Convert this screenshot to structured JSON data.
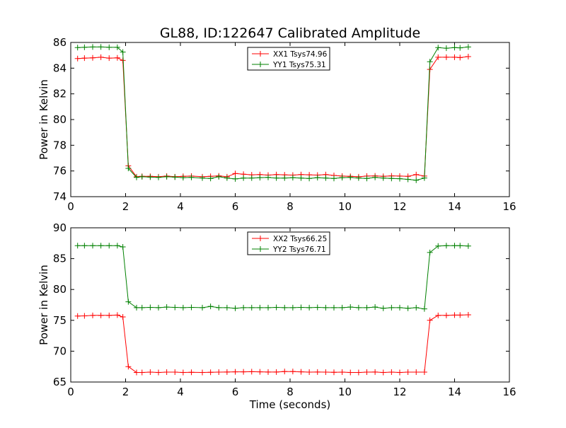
{
  "figure": {
    "title": "GL88, ID:122647 Calibrated Amplitude",
    "background": "#ffffff"
  },
  "chart_data": [
    {
      "type": "line",
      "title": "GL88, ID:122647 Calibrated Amplitude",
      "xlabel": "",
      "ylabel": "Power in Kelvin",
      "xlim": [
        0,
        16
      ],
      "ylim": [
        74,
        86
      ],
      "xticks": [
        0,
        2,
        4,
        6,
        8,
        10,
        12,
        14,
        16
      ],
      "yticks": [
        74,
        76,
        78,
        80,
        82,
        84,
        86
      ],
      "grid": false,
      "legend_position": "top-center",
      "marker": "+",
      "x": [
        0.25,
        0.5,
        0.8,
        1.1,
        1.4,
        1.7,
        1.9,
        2.1,
        2.4,
        2.6,
        2.9,
        3.2,
        3.5,
        3.8,
        4.1,
        4.4,
        4.8,
        5.1,
        5.4,
        5.7,
        6.0,
        6.3,
        6.6,
        6.9,
        7.2,
        7.5,
        7.8,
        8.1,
        8.4,
        8.7,
        9.0,
        9.3,
        9.6,
        9.9,
        10.2,
        10.5,
        10.8,
        11.1,
        11.4,
        11.7,
        12.0,
        12.3,
        12.6,
        12.9,
        13.1,
        13.4,
        13.7,
        14.0,
        14.2,
        14.5
      ],
      "series": [
        {
          "name": "XX1 Tsys74.96",
          "color": "#ff0000",
          "values": [
            84.75,
            84.78,
            84.8,
            84.85,
            84.78,
            84.8,
            84.6,
            76.4,
            75.55,
            75.58,
            75.58,
            75.55,
            75.6,
            75.55,
            75.58,
            75.6,
            75.55,
            75.58,
            75.62,
            75.55,
            75.8,
            75.75,
            75.7,
            75.72,
            75.68,
            75.72,
            75.7,
            75.68,
            75.72,
            75.7,
            75.68,
            75.72,
            75.65,
            75.6,
            75.58,
            75.55,
            75.6,
            75.62,
            75.58,
            75.62,
            75.6,
            75.58,
            75.72,
            75.6,
            83.9,
            84.85,
            84.85,
            84.85,
            84.82,
            84.9
          ]
        },
        {
          "name": "YY1 Tsys75.31",
          "color": "#008000",
          "values": [
            85.6,
            85.62,
            85.65,
            85.65,
            85.62,
            85.62,
            85.25,
            76.2,
            75.5,
            75.55,
            75.52,
            75.5,
            75.55,
            75.52,
            75.48,
            75.5,
            75.45,
            75.42,
            75.55,
            75.45,
            75.38,
            75.45,
            75.45,
            75.48,
            75.5,
            75.45,
            75.45,
            75.48,
            75.45,
            75.42,
            75.48,
            75.45,
            75.42,
            75.48,
            75.5,
            75.45,
            75.42,
            75.5,
            75.45,
            75.42,
            75.4,
            75.35,
            75.28,
            75.45,
            84.5,
            85.6,
            85.55,
            85.6,
            85.58,
            85.65
          ]
        }
      ]
    },
    {
      "type": "line",
      "title": "",
      "xlabel": "Time (seconds)",
      "ylabel": "Power in Kelvin",
      "xlim": [
        0,
        16
      ],
      "ylim": [
        65,
        90
      ],
      "xticks": [
        0,
        2,
        4,
        6,
        8,
        10,
        12,
        14,
        16
      ],
      "yticks": [
        65,
        70,
        75,
        80,
        85,
        90
      ],
      "grid": false,
      "legend_position": "top-center",
      "marker": "+",
      "x": [
        0.25,
        0.5,
        0.8,
        1.1,
        1.4,
        1.7,
        1.9,
        2.1,
        2.4,
        2.6,
        2.9,
        3.2,
        3.5,
        3.8,
        4.1,
        4.4,
        4.8,
        5.1,
        5.4,
        5.7,
        6.0,
        6.3,
        6.6,
        6.9,
        7.2,
        7.5,
        7.8,
        8.1,
        8.4,
        8.7,
        9.0,
        9.3,
        9.6,
        9.9,
        10.2,
        10.5,
        10.8,
        11.1,
        11.4,
        11.7,
        12.0,
        12.3,
        12.6,
        12.9,
        13.1,
        13.4,
        13.7,
        14.0,
        14.2,
        14.5
      ],
      "series": [
        {
          "name": "XX2 Tsys66.25",
          "color": "#ff0000",
          "values": [
            75.7,
            75.72,
            75.8,
            75.8,
            75.8,
            75.85,
            75.55,
            67.5,
            66.55,
            66.55,
            66.6,
            66.55,
            66.6,
            66.6,
            66.55,
            66.58,
            66.55,
            66.58,
            66.6,
            66.62,
            66.65,
            66.65,
            66.68,
            66.65,
            66.62,
            66.62,
            66.7,
            66.7,
            66.65,
            66.6,
            66.62,
            66.6,
            66.58,
            66.6,
            66.55,
            66.55,
            66.6,
            66.62,
            66.55,
            66.6,
            66.55,
            66.6,
            66.6,
            66.6,
            75.0,
            75.8,
            75.8,
            75.85,
            75.85,
            75.9
          ]
        },
        {
          "name": "YY2 Tsys76.71",
          "color": "#008000",
          "values": [
            87.1,
            87.1,
            87.1,
            87.1,
            87.1,
            87.1,
            86.9,
            78.0,
            77.05,
            77.05,
            77.1,
            77.05,
            77.15,
            77.1,
            77.05,
            77.1,
            77.05,
            77.25,
            77.05,
            77.05,
            76.95,
            77.05,
            77.05,
            77.05,
            77.05,
            77.1,
            77.05,
            77.05,
            77.1,
            77.05,
            77.1,
            77.05,
            77.05,
            77.05,
            77.15,
            77.05,
            77.05,
            77.15,
            76.95,
            77.05,
            77.05,
            76.95,
            77.05,
            76.85,
            86.0,
            87.05,
            87.1,
            87.1,
            87.1,
            87.05
          ]
        }
      ]
    }
  ]
}
